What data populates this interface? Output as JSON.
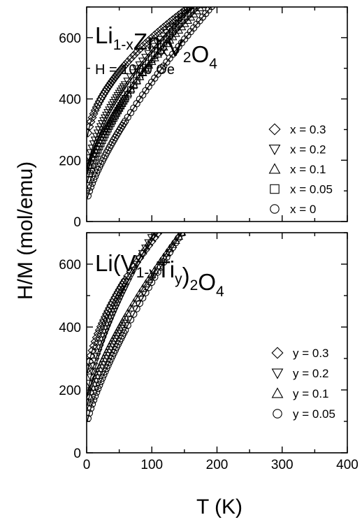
{
  "chart_data": [
    {
      "type": "scatter",
      "panel": "top",
      "compound": {
        "base": "Li",
        "parts": [
          {
            "t": "Li",
            "s": "1-x"
          },
          {
            "t": "Zn",
            "s": "x"
          },
          {
            "t": "V",
            "s": "2"
          },
          {
            "t": "O",
            "s": "4"
          }
        ]
      },
      "field_label": "H = 1000 Oe",
      "xlim": [
        0,
        400
      ],
      "ylim": [
        0,
        700
      ],
      "yticks": [
        0,
        200,
        400,
        600
      ],
      "ytick_labels": [
        "0",
        "200",
        "400",
        "600"
      ],
      "fit_lines": true,
      "series": [
        {
          "name": "x = 0.3",
          "marker": "diamond",
          "y0": 248,
          "c": 352,
          "p": 0.55
        },
        {
          "name": "x = 0.2",
          "marker": "triangle-down",
          "y0": 150,
          "c": 410,
          "p": 0.62
        },
        {
          "name": "x = 0.1",
          "marker": "triangle-up",
          "y0": 138,
          "c": 385,
          "p": 0.68
        },
        {
          "name": "x = 0.05",
          "marker": "square",
          "y0": 110,
          "c": 420,
          "p": 0.7
        },
        {
          "name": "x = 0",
          "marker": "circle",
          "y0": 63,
          "c": 392,
          "p": 0.75
        }
      ]
    },
    {
      "type": "scatter",
      "panel": "bottom",
      "compound": {
        "parts": [
          {
            "t": "Li(V",
            "s": "1-y"
          },
          {
            "t": "Ti",
            "s": "y"
          },
          {
            "t": ")",
            "s": "2"
          },
          {
            "t": "O",
            "s": "4"
          }
        ]
      },
      "xlim": [
        0,
        400
      ],
      "ylim": [
        0,
        700
      ],
      "yticks": [
        0,
        200,
        400,
        600
      ],
      "ytick_labels": [
        "0",
        "200",
        "400",
        "600"
      ],
      "xticks": [
        0,
        100,
        200,
        300,
        400
      ],
      "xtick_labels": [
        "0",
        "100",
        "200",
        "300",
        "400"
      ],
      "fit_lines": true,
      "series": [
        {
          "name": "y = 0.3",
          "marker": "diamond",
          "y0": 228,
          "c": 445,
          "p": 0.62
        },
        {
          "name": "y = 0.2",
          "marker": "triangle-down",
          "y0": 160,
          "c": 525,
          "p": 0.68
        },
        {
          "name": "y = 0.1",
          "marker": "triangle-up",
          "y0": 135,
          "c": 432,
          "p": 0.72
        },
        {
          "name": "y = 0.05",
          "marker": "circle",
          "y0": 88,
          "c": 455,
          "p": 0.78
        }
      ]
    }
  ],
  "xlabel": "T (K)",
  "ylabel": "H/M  (mol/emu)"
}
